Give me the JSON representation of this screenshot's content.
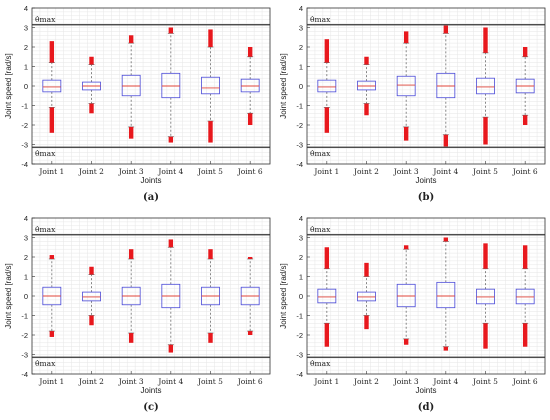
{
  "figure": {
    "title": "",
    "common": {
      "categories": [
        "Joint 1",
        "Joint 2",
        "Joint 3",
        "Joint 4",
        "Joint 5",
        "Joint 6"
      ],
      "xlabel": "Joints",
      "ylabel": "Joint speed [rad/s]",
      "ylim": [
        -4,
        4
      ],
      "yticks": [
        "4",
        "3",
        "2",
        "1",
        "0",
        "-1",
        "-2",
        "-3",
        "-4"
      ],
      "limit_top_label": "θ̇max",
      "limit_bottom_label": "θ̇max",
      "limit_value": 3.14,
      "grid": true
    }
  },
  "colors": {
    "box": "#4a4ad8",
    "median": "#e0443a",
    "outlier": "#e8181d",
    "whisker": "#6a6a6a",
    "limit": "#333333",
    "grid": "#e6e6e6"
  },
  "chart_data": [
    {
      "type": "box",
      "panel": "(a)",
      "boxes": [
        {
          "category": "Joint 1",
          "q1": -0.3,
          "median": -0.05,
          "q3": 0.3,
          "whisker_low": -1.1,
          "whisker_high": 1.2,
          "outliers": [
            [
              1.2,
              2.3
            ],
            [
              -2.4,
              -1.1
            ]
          ]
        },
        {
          "category": "Joint 2",
          "q1": -0.2,
          "median": 0.0,
          "q3": 0.2,
          "whisker_low": -0.9,
          "whisker_high": 1.1,
          "outliers": [
            [
              1.1,
              1.5
            ],
            [
              -1.4,
              -0.9
            ]
          ]
        },
        {
          "category": "Joint 3",
          "q1": -0.5,
          "median": 0.0,
          "q3": 0.55,
          "whisker_low": -2.1,
          "whisker_high": 2.2,
          "outliers": [
            [
              2.2,
              2.6
            ],
            [
              -2.7,
              -2.1
            ]
          ]
        },
        {
          "category": "Joint 4",
          "q1": -0.6,
          "median": 0.0,
          "q3": 0.65,
          "whisker_low": -2.6,
          "whisker_high": 2.7,
          "outliers": [
            [
              2.7,
              3.0
            ],
            [
              -2.9,
              -2.6
            ]
          ]
        },
        {
          "category": "Joint 5",
          "q1": -0.4,
          "median": -0.1,
          "q3": 0.45,
          "whisker_low": -1.8,
          "whisker_high": 2.0,
          "outliers": [
            [
              2.0,
              2.9
            ],
            [
              -2.9,
              -1.8
            ]
          ]
        },
        {
          "category": "Joint 6",
          "q1": -0.3,
          "median": 0.0,
          "q3": 0.35,
          "whisker_low": -1.4,
          "whisker_high": 1.5,
          "outliers": [
            [
              1.5,
              2.0
            ],
            [
              -2.0,
              -1.4
            ]
          ]
        }
      ]
    },
    {
      "type": "box",
      "panel": "(b)",
      "boxes": [
        {
          "category": "Joint 1",
          "q1": -0.3,
          "median": -0.05,
          "q3": 0.3,
          "whisker_low": -1.1,
          "whisker_high": 1.2,
          "outliers": [
            [
              1.2,
              2.4
            ],
            [
              -2.4,
              -1.1
            ]
          ]
        },
        {
          "category": "Joint 2",
          "q1": -0.2,
          "median": 0.0,
          "q3": 0.25,
          "whisker_low": -0.9,
          "whisker_high": 1.1,
          "outliers": [
            [
              1.1,
              1.5
            ],
            [
              -1.5,
              -0.9
            ]
          ]
        },
        {
          "category": "Joint 3",
          "q1": -0.5,
          "median": 0.05,
          "q3": 0.5,
          "whisker_low": -2.1,
          "whisker_high": 2.2,
          "outliers": [
            [
              2.2,
              2.8
            ],
            [
              -2.8,
              -2.1
            ]
          ]
        },
        {
          "category": "Joint 4",
          "q1": -0.6,
          "median": 0.0,
          "q3": 0.65,
          "whisker_low": -2.5,
          "whisker_high": 2.7,
          "outliers": [
            [
              2.7,
              3.1
            ],
            [
              -3.1,
              -2.5
            ]
          ]
        },
        {
          "category": "Joint 5",
          "q1": -0.4,
          "median": -0.05,
          "q3": 0.4,
          "whisker_low": -1.6,
          "whisker_high": 1.7,
          "outliers": [
            [
              1.7,
              3.0
            ],
            [
              -3.0,
              -1.6
            ]
          ]
        },
        {
          "category": "Joint 6",
          "q1": -0.35,
          "median": 0.0,
          "q3": 0.35,
          "whisker_low": -1.5,
          "whisker_high": 1.5,
          "outliers": [
            [
              1.5,
              2.0
            ],
            [
              -2.0,
              -1.5
            ]
          ]
        }
      ]
    },
    {
      "type": "box",
      "panel": "(c)",
      "boxes": [
        {
          "category": "Joint 1",
          "q1": -0.45,
          "median": 0.0,
          "q3": 0.45,
          "whisker_low": -1.8,
          "whisker_high": 1.9,
          "outliers": [
            [
              1.9,
              2.1
            ],
            [
              -2.1,
              -1.8
            ]
          ]
        },
        {
          "category": "Joint 2",
          "q1": -0.25,
          "median": -0.05,
          "q3": 0.2,
          "whisker_low": -1.0,
          "whisker_high": 1.1,
          "outliers": [
            [
              1.1,
              1.5
            ],
            [
              -1.5,
              -1.0
            ]
          ]
        },
        {
          "category": "Joint 3",
          "q1": -0.45,
          "median": 0.0,
          "q3": 0.45,
          "whisker_low": -1.9,
          "whisker_high": 1.9,
          "outliers": [
            [
              1.9,
              2.4
            ],
            [
              -2.4,
              -1.9
            ]
          ]
        },
        {
          "category": "Joint 4",
          "q1": -0.6,
          "median": 0.0,
          "q3": 0.6,
          "whisker_low": -2.5,
          "whisker_high": 2.5,
          "outliers": [
            [
              2.5,
              2.9
            ],
            [
              -2.9,
              -2.5
            ]
          ]
        },
        {
          "category": "Joint 5",
          "q1": -0.45,
          "median": 0.0,
          "q3": 0.45,
          "whisker_low": -1.9,
          "whisker_high": 1.9,
          "outliers": [
            [
              1.9,
              2.4
            ],
            [
              -2.4,
              -1.9
            ]
          ]
        },
        {
          "category": "Joint 6",
          "q1": -0.45,
          "median": 0.0,
          "q3": 0.45,
          "whisker_low": -1.8,
          "whisker_high": 1.9,
          "outliers": [
            [
              1.9,
              2.0
            ],
            [
              -2.0,
              -1.8
            ]
          ]
        }
      ]
    },
    {
      "type": "box",
      "panel": "(d)",
      "boxes": [
        {
          "category": "Joint 1",
          "q1": -0.35,
          "median": -0.05,
          "q3": 0.35,
          "whisker_low": -1.4,
          "whisker_high": 1.4,
          "outliers": [
            [
              1.4,
              2.5
            ],
            [
              -2.6,
              -1.4
            ]
          ]
        },
        {
          "category": "Joint 2",
          "q1": -0.25,
          "median": -0.05,
          "q3": 0.2,
          "whisker_low": -1.0,
          "whisker_high": 1.0,
          "outliers": [
            [
              1.0,
              1.7
            ],
            [
              -1.7,
              -1.0
            ]
          ]
        },
        {
          "category": "Joint 3",
          "q1": -0.55,
          "median": 0.0,
          "q3": 0.6,
          "whisker_low": -2.2,
          "whisker_high": 2.4,
          "outliers": [
            [
              2.4,
              2.6
            ],
            [
              -2.5,
              -2.2
            ]
          ]
        },
        {
          "category": "Joint 4",
          "q1": -0.6,
          "median": 0.0,
          "q3": 0.7,
          "whisker_low": -2.6,
          "whisker_high": 2.8,
          "outliers": [
            [
              2.8,
              3.0
            ],
            [
              -2.8,
              -2.6
            ]
          ]
        },
        {
          "category": "Joint 5",
          "q1": -0.4,
          "median": -0.05,
          "q3": 0.35,
          "whisker_low": -1.4,
          "whisker_high": 1.4,
          "outliers": [
            [
              1.4,
              2.7
            ],
            [
              -2.7,
              -1.4
            ]
          ]
        },
        {
          "category": "Joint 6",
          "q1": -0.4,
          "median": -0.05,
          "q3": 0.35,
          "whisker_low": -1.4,
          "whisker_high": 1.4,
          "outliers": [
            [
              1.4,
              2.6
            ],
            [
              -2.6,
              -1.4
            ]
          ]
        }
      ]
    }
  ]
}
